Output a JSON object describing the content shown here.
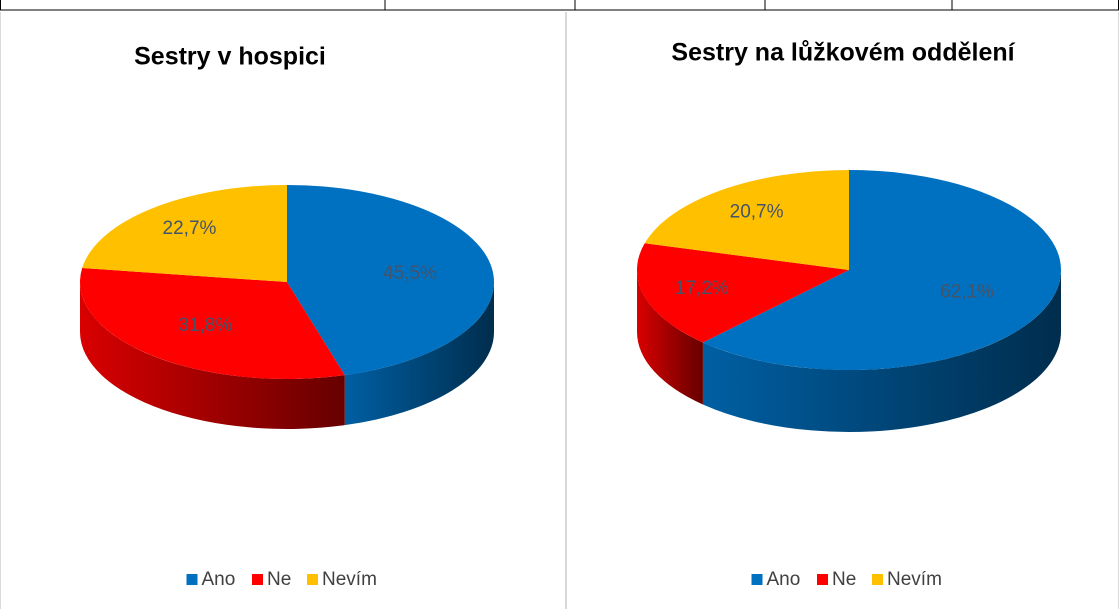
{
  "chart_data": [
    {
      "type": "pie",
      "title": "Sestry v hospici",
      "categories": [
        "Ano",
        "Ne",
        "Nevím"
      ],
      "values": [
        45.5,
        31.8,
        22.7
      ],
      "value_labels": [
        "45,5%",
        "31,8%",
        "22,7%"
      ],
      "colors": [
        "#0070c0",
        "#ff0000",
        "#ffc000"
      ]
    },
    {
      "type": "pie",
      "title": "Sestry na lůžkovém oddělení",
      "categories": [
        "Ano",
        "Ne",
        "Nevím"
      ],
      "values": [
        62.1,
        17.2,
        20.7
      ],
      "value_labels": [
        "62,1%",
        "17,2%",
        "20,7%"
      ],
      "colors": [
        "#0070c0",
        "#ff0000",
        "#ffc000"
      ]
    }
  ]
}
